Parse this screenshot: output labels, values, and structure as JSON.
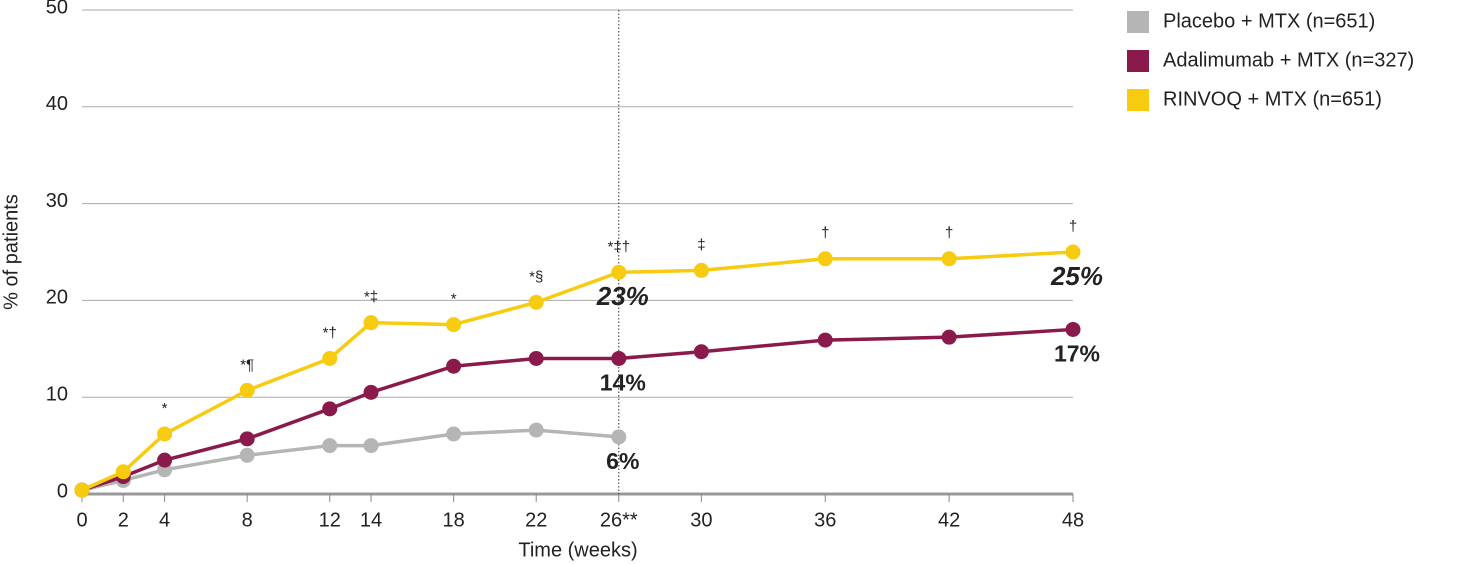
{
  "chart_data": {
    "type": "line",
    "x_label": "Time (weeks)",
    "y_label": "% of patients",
    "x": [
      0,
      2,
      4,
      8,
      12,
      14,
      18,
      22,
      26,
      30,
      36,
      42,
      48
    ],
    "xlim": [
      0,
      48
    ],
    "xticks": [
      0,
      2,
      4,
      8,
      12,
      14,
      18,
      22,
      {
        "value": 26,
        "label": "26**"
      },
      30,
      36,
      42,
      48
    ],
    "ylim": [
      0,
      50
    ],
    "yticks": [
      0,
      10,
      20,
      30,
      40,
      50
    ],
    "grid": true,
    "legend": "top-right",
    "series": [
      {
        "name": "Placebo + MTX (n=651)",
        "color": "#b5b5b5",
        "values": [
          0.4,
          1.4,
          2.5,
          4.0,
          5.0,
          5.0,
          6.2,
          6.6,
          5.9,
          null,
          null,
          null,
          null
        ],
        "value_labels": [
          null,
          null,
          null,
          null,
          null,
          null,
          null,
          null,
          "6%",
          null,
          null,
          null,
          null
        ]
      },
      {
        "name": "Adalimumab + MTX (n=327)",
        "color": "#8a1a4b",
        "values": [
          0.4,
          1.8,
          3.5,
          5.7,
          8.8,
          10.5,
          13.2,
          14.0,
          14.0,
          14.7,
          15.9,
          16.2,
          17.0
        ],
        "value_labels": [
          null,
          null,
          null,
          null,
          null,
          null,
          null,
          null,
          "14%",
          null,
          null,
          null,
          "17%"
        ]
      },
      {
        "name": "RINVOQ + MTX (n=651)",
        "color": "#f7cb0f",
        "values": [
          0.4,
          2.3,
          6.2,
          10.7,
          14.0,
          17.7,
          17.5,
          19.8,
          22.9,
          23.1,
          24.3,
          24.3,
          25.0
        ],
        "value_labels": [
          null,
          null,
          null,
          null,
          null,
          null,
          null,
          null,
          "23%",
          null,
          null,
          null,
          "25%"
        ],
        "significance": [
          null,
          null,
          "*",
          "*¶",
          "*†",
          "*‡",
          "*",
          "*§",
          "*‡†",
          "‡",
          "†",
          "†",
          "†"
        ]
      }
    ]
  }
}
